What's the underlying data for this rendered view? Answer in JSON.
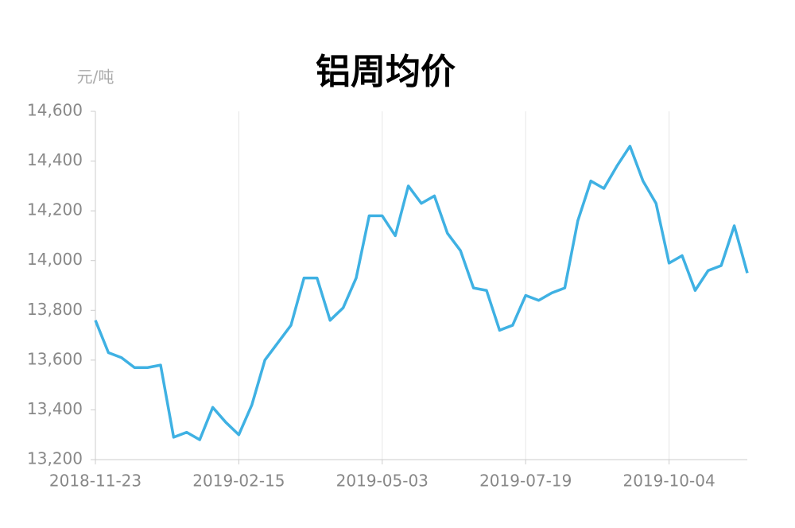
{
  "chart_data": {
    "type": "line",
    "title": "铝周均价",
    "y_unit": "元/吨",
    "categories": [
      "2018-11-23",
      null,
      null,
      null,
      null,
      null,
      null,
      null,
      null,
      null,
      null,
      "2019-02-15",
      null,
      null,
      null,
      null,
      null,
      null,
      null,
      null,
      null,
      null,
      "2019-05-03",
      null,
      null,
      null,
      null,
      null,
      null,
      null,
      null,
      null,
      null,
      "2019-07-19",
      null,
      null,
      null,
      null,
      null,
      null,
      null,
      null,
      null,
      null,
      "2019-10-04",
      null,
      null,
      null,
      null,
      null,
      null
    ],
    "series": [
      {
        "color": "#3fb1e3",
        "values": [
          13760,
          13630,
          13610,
          13570,
          13570,
          13580,
          13290,
          13310,
          13280,
          13410,
          13350,
          13300,
          13420,
          13600,
          13670,
          13740,
          13930,
          13930,
          13760,
          13810,
          13930,
          14180,
          14180,
          14100,
          14300,
          14230,
          14260,
          14110,
          14040,
          13890,
          13880,
          13720,
          13740,
          13860,
          13840,
          13870,
          13890,
          14160,
          14320,
          14290,
          14380,
          14460,
          14320,
          14230,
          13990,
          14020,
          13880,
          13960,
          13980,
          14140,
          13950
        ]
      }
    ],
    "ylim": [
      13200,
      14600
    ],
    "yticks": [
      {
        "value": 13200,
        "label": "13,200"
      },
      {
        "value": 13400,
        "label": "13,400"
      },
      {
        "value": 13600,
        "label": "13,600"
      },
      {
        "value": 13800,
        "label": "13,800"
      },
      {
        "value": 14000,
        "label": "14,000"
      },
      {
        "value": 14200,
        "label": "14,200"
      },
      {
        "value": 14400,
        "label": "14,400"
      },
      {
        "value": 14600,
        "label": "14,600"
      }
    ],
    "grid": true
  }
}
